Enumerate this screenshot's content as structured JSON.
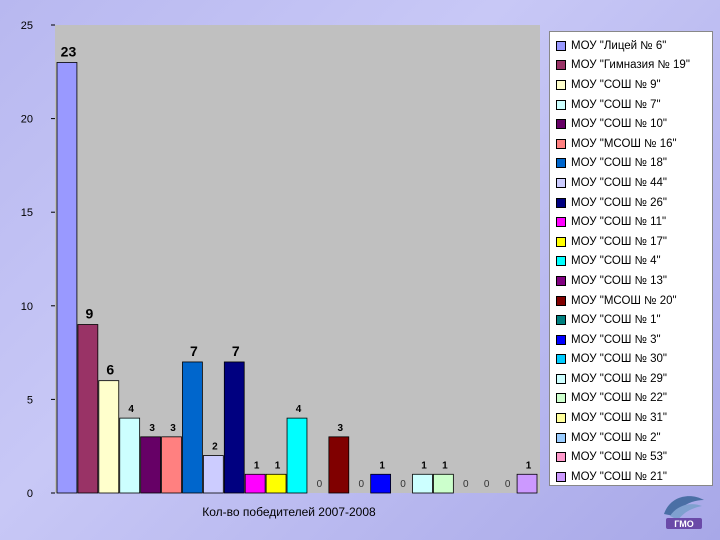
{
  "chart_data": {
    "type": "bar",
    "title": "",
    "xlabel": "Кол-во победителей 2007-2008",
    "ylabel": "",
    "ylim": [
      0,
      25
    ],
    "yticks": [
      0,
      5,
      10,
      15,
      20,
      25
    ],
    "grid": false,
    "legend_position": "right",
    "series": [
      {
        "name": "МОУ \"Лицей № 6\"",
        "value": 23,
        "label": "23",
        "color": "#9999ff"
      },
      {
        "name": "МОУ \"Гимназия № 19\"",
        "value": 9,
        "label": "9",
        "color": "#993366"
      },
      {
        "name": "МОУ \"СОШ № 9\"",
        "value": 6,
        "label": "6",
        "color": "#ffffcc"
      },
      {
        "name": "МОУ \"СОШ № 7\"",
        "value": 4,
        "label": "4",
        "color": "#ccffff"
      },
      {
        "name": "МОУ \"СОШ № 10\"",
        "value": 3,
        "label": "3",
        "color": "#660066"
      },
      {
        "name": "МОУ \"МСОШ № 16\"",
        "value": 3,
        "label": "3",
        "color": "#ff8080"
      },
      {
        "name": "МОУ \"СОШ № 18\"",
        "value": 7,
        "label": "7",
        "color": "#0066cc"
      },
      {
        "name": "МОУ \"СОШ № 44\"",
        "value": 2,
        "label": "2",
        "color": "#ccccff"
      },
      {
        "name": "МОУ \"СОШ № 26\"",
        "value": 7,
        "label": "7",
        "color": "#000080"
      },
      {
        "name": "МОУ \"СОШ № 11\"",
        "value": 1,
        "label": "1",
        "color": "#ff00ff"
      },
      {
        "name": "МОУ \"СОШ № 17\"",
        "value": 1,
        "label": "1",
        "color": "#ffff00"
      },
      {
        "name": "МОУ \"СОШ № 4\"",
        "value": 4,
        "label": "4",
        "color": "#00ffff"
      },
      {
        "name": "МОУ \"СОШ № 13\"",
        "value": 0,
        "label": "0",
        "color": "#800080"
      },
      {
        "name": "МОУ \"МСОШ № 20\"",
        "value": 3,
        "label": "3",
        "color": "#800000"
      },
      {
        "name": "МОУ \"СОШ № 1\"",
        "value": 0,
        "label": "0",
        "color": "#008080"
      },
      {
        "name": "МОУ \"СОШ № 3\"",
        "value": 1,
        "label": "1",
        "color": "#0000ff"
      },
      {
        "name": "МОУ \"СОШ № 30\"",
        "value": 0,
        "label": "0",
        "color": "#00ccff"
      },
      {
        "name": "МОУ \"СОШ № 29\"",
        "value": 1,
        "label": "1",
        "color": "#ccffff"
      },
      {
        "name": "МОУ \"СОШ № 22\"",
        "value": 1,
        "label": "1",
        "color": "#ccffcc"
      },
      {
        "name": "МОУ \"СОШ № 31\"",
        "value": 0,
        "label": "0",
        "color": "#ffff99"
      },
      {
        "name": "МОУ \"СОШ № 2\"",
        "value": 0,
        "label": "0",
        "color": "#99ccff"
      },
      {
        "name": "МОУ \"СОШ № 53\"",
        "value": 0,
        "label": "0",
        "color": "#ff99cc"
      },
      {
        "name": "МОУ \"СОШ № 21\"",
        "value": 1,
        "label": "1",
        "color": "#cc99ff"
      }
    ]
  },
  "logo": {
    "text": "ГМО"
  },
  "colors": {
    "plot_area": "#c0c0c0",
    "background": "#b8b8f0"
  }
}
